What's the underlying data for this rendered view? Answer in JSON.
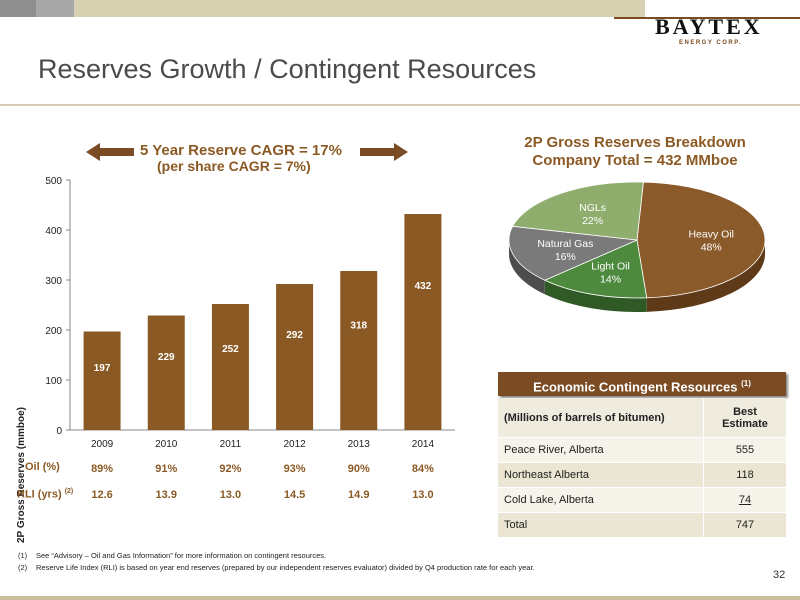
{
  "header": {
    "logo_word": "BAYTEX",
    "logo_sub": "ENERGY CORP.",
    "title": "Reserves Growth / Contingent Resources"
  },
  "cagr": {
    "line1": "5 Year Reserve CAGR = 17%",
    "line2": "(per share CAGR = 7%)"
  },
  "colors": {
    "bar": "#8b5a24",
    "accent_text": "#8b5a24",
    "heavy_oil": "#8b5a2b",
    "light_oil": "#4e8a3e",
    "natural_gas": "#7a7a7a",
    "ngls": "#8fae6e"
  },
  "chart_data": [
    {
      "type": "bar",
      "ylabel": "2P Gross Reserves (mmboe)",
      "ylim": [
        0,
        500
      ],
      "yticks": [
        0,
        100,
        200,
        300,
        400,
        500
      ],
      "categories": [
        "2009",
        "2010",
        "2011",
        "2012",
        "2013",
        "2014"
      ],
      "values": [
        197,
        229,
        252,
        292,
        318,
        432
      ],
      "data_labels": [
        "197",
        "229",
        "252",
        "292",
        "318",
        "432"
      ],
      "grid": false
    },
    {
      "type": "pie",
      "title_line1": "2P Gross Reserves Breakdown",
      "title_line2": "Company Total = 432 MMboe",
      "slices": [
        {
          "name": "Heavy Oil",
          "value": 48,
          "label": "48%"
        },
        {
          "name": "Light Oil",
          "value": 14,
          "label": "14%"
        },
        {
          "name": "Natural Gas",
          "value": 16,
          "label": "16%"
        },
        {
          "name": "NGLs",
          "value": 22,
          "label": "22%"
        }
      ]
    }
  ],
  "metrics": {
    "oil_label": "Oil (%)",
    "oil_values": [
      "89%",
      "91%",
      "92%",
      "93%",
      "90%",
      "84%"
    ],
    "rli_label": "RLI (yrs)",
    "rli_sup": "(2)",
    "rli_values": [
      "12.6",
      "13.9",
      "13.0",
      "14.5",
      "14.9",
      "13.0"
    ]
  },
  "contingent": {
    "header": "Economic Contingent Resources",
    "header_sup": "(1)",
    "col1": "(Millions of barrels of bitumen)",
    "col2_line1": "Best",
    "col2_line2": "Estimate",
    "rows": [
      {
        "name": "Peace River, Alberta",
        "value": "555"
      },
      {
        "name": "Northeast Alberta",
        "value": "118"
      },
      {
        "name": "Cold Lake, Alberta",
        "value": "74"
      },
      {
        "name": "Total",
        "value": "747"
      }
    ]
  },
  "footnotes": {
    "note1_num": "(1)",
    "note1": "See “Advisory – Oil and Gas Information” for more information on contingent resources.",
    "note2_num": "(2)",
    "note2": "Reserve Life Index (RLI) is based on year end reserves (prepared by our independent reserves evaluator) divided by Q4 production rate for each year."
  },
  "page_number": "32"
}
